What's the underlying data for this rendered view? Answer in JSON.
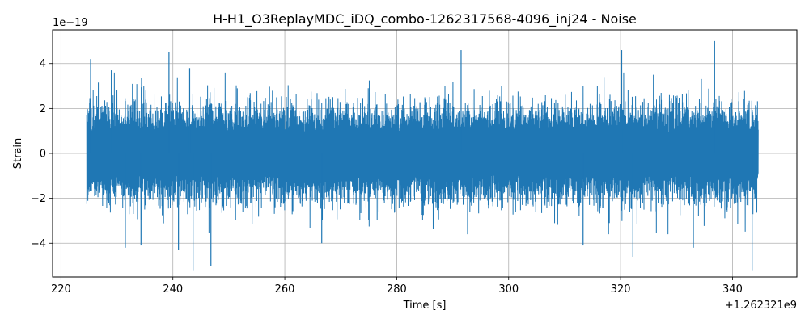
{
  "chart_data": {
    "type": "line",
    "title": "H-H1_O3ReplayMDC_iDQ_combo-1262317568-4096_inj24 - Noise",
    "xlabel": "Time [s]",
    "ylabel": "Strain",
    "x_offset_label": "+1.262321e9",
    "y_scale_label": "1e−19",
    "xlim": [
      218.5,
      351.5
    ],
    "ylim": [
      -5.5,
      5.5
    ],
    "xticks": [
      220,
      240,
      260,
      280,
      300,
      320,
      340
    ],
    "yticks": [
      -4,
      -2,
      0,
      2,
      4
    ],
    "xtick_labels": [
      "220",
      "240",
      "260",
      "280",
      "300",
      "320",
      "340"
    ],
    "ytick_labels": [
      "−4",
      "−2",
      "0",
      "2",
      "4"
    ],
    "grid": true,
    "series": [
      {
        "color": "#1f77b4",
        "x_range": [
          224.6,
          344.6
        ],
        "typical_amplitude": 1.6,
        "peaks": [
          {
            "x": 225.3,
            "y": 4.2
          },
          {
            "x": 229.0,
            "y": 3.7
          },
          {
            "x": 231.5,
            "y": -4.2
          },
          {
            "x": 234.3,
            "y": -4.1
          },
          {
            "x": 239.3,
            "y": 4.5
          },
          {
            "x": 241.0,
            "y": -4.3
          },
          {
            "x": 243.0,
            "y": 3.8
          },
          {
            "x": 243.6,
            "y": -5.2
          },
          {
            "x": 246.8,
            "y": -5.0
          },
          {
            "x": 266.6,
            "y": -4.0
          },
          {
            "x": 291.5,
            "y": 4.6
          },
          {
            "x": 313.3,
            "y": -4.1
          },
          {
            "x": 320.2,
            "y": 4.6
          },
          {
            "x": 322.2,
            "y": -4.6
          },
          {
            "x": 333.0,
            "y": -4.2
          },
          {
            "x": 336.8,
            "y": 5.0
          },
          {
            "x": 343.5,
            "y": -5.2
          }
        ]
      }
    ]
  }
}
